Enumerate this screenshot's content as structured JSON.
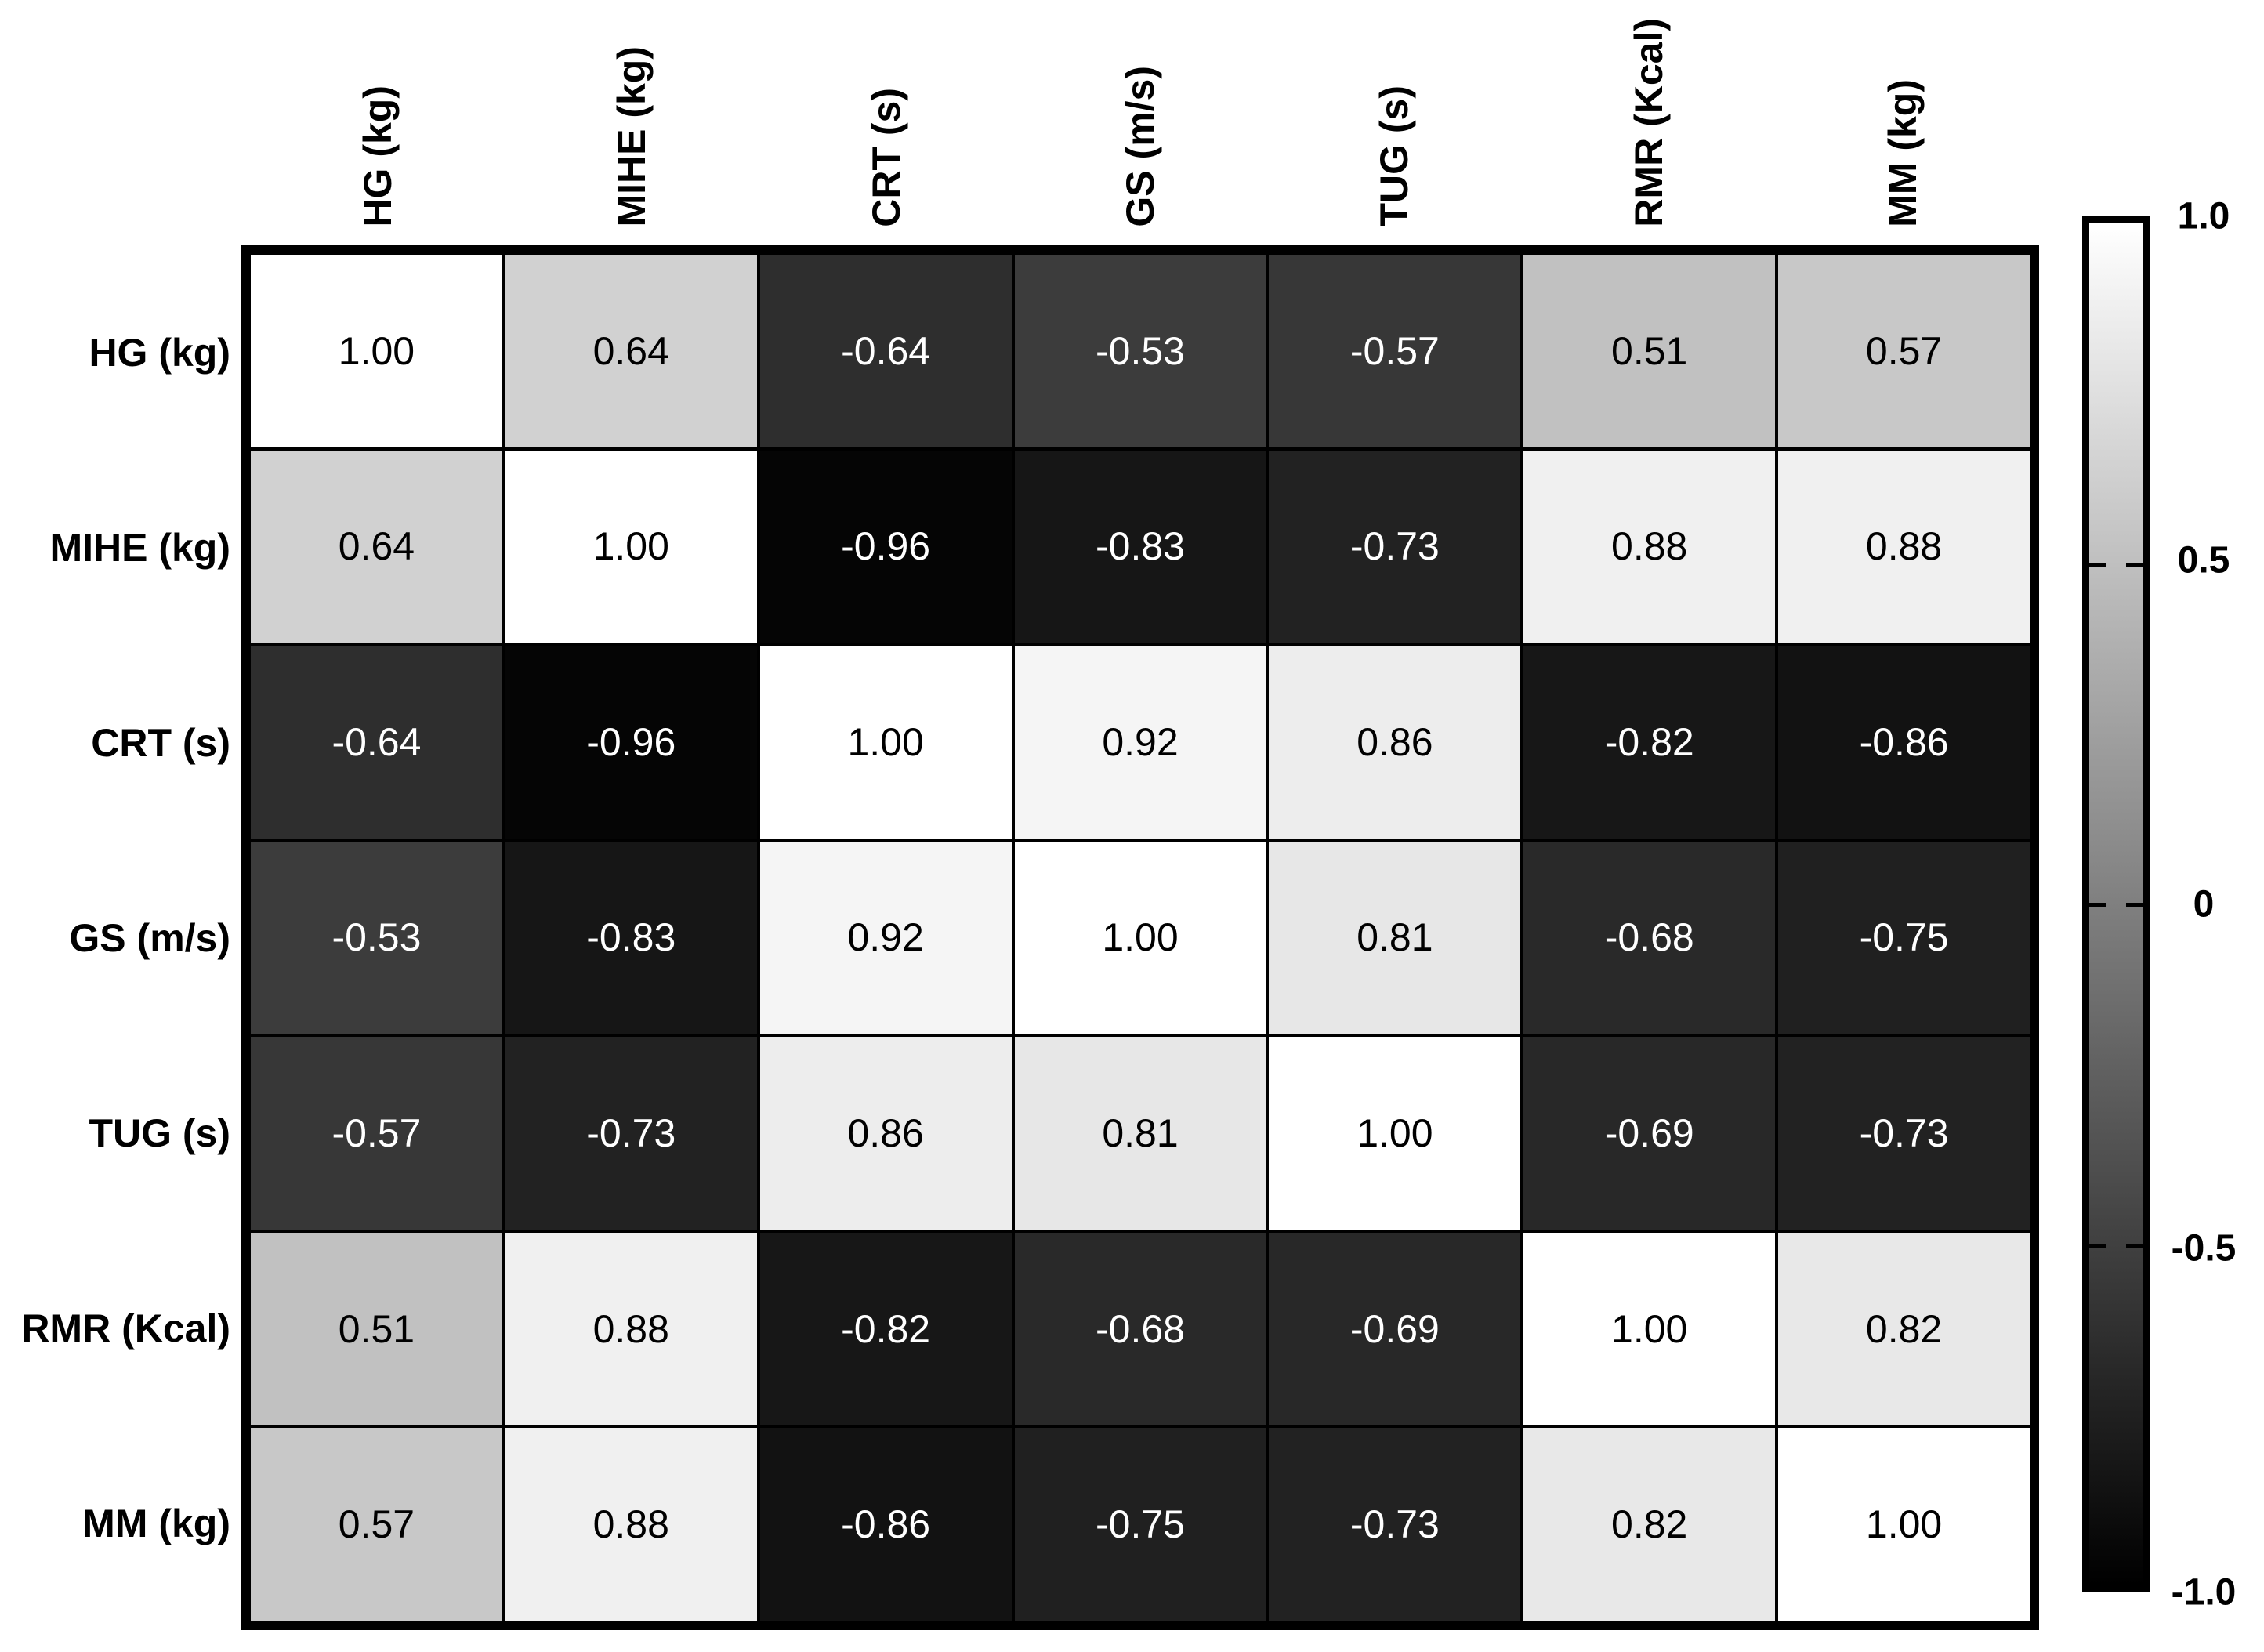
{
  "chart_data": {
    "type": "heatmap",
    "title": "",
    "variables": [
      "HG (kg)",
      "MIHE (kg)",
      "CRT (s)",
      "GS (m/s)",
      "TUG (s)",
      "RMR (Kcal)",
      "MM (kg)"
    ],
    "matrix": [
      [
        1.0,
        0.64,
        -0.64,
        -0.53,
        -0.57,
        0.51,
        0.57
      ],
      [
        0.64,
        1.0,
        -0.96,
        -0.83,
        -0.73,
        0.88,
        0.88
      ],
      [
        -0.64,
        -0.96,
        1.0,
        0.92,
        0.86,
        -0.82,
        -0.86
      ],
      [
        -0.53,
        -0.83,
        0.92,
        1.0,
        0.81,
        -0.68,
        -0.75
      ],
      [
        -0.57,
        -0.73,
        0.86,
        0.81,
        1.0,
        -0.69,
        -0.73
      ],
      [
        0.51,
        0.88,
        -0.82,
        -0.68,
        -0.69,
        1.0,
        0.82
      ],
      [
        0.57,
        0.88,
        -0.86,
        -0.75,
        -0.73,
        0.82,
        1.0
      ]
    ],
    "value_decimals": 2,
    "value_range": [
      -1,
      1
    ],
    "colormap": "grayscale",
    "grid": true,
    "colorbar": {
      "position": "right",
      "tick_labels": [
        "1.0",
        "0.5",
        "0",
        "-0.5",
        "-1.0"
      ],
      "tick_values": [
        1.0,
        0.5,
        0,
        -0.5,
        -1.0
      ],
      "max_color": "#ffffff",
      "min_color": "#000000"
    },
    "cell_text_color_on_light": "#000000",
    "cell_text_color_on_dark": "#ffffff",
    "border_color": "#000000"
  }
}
